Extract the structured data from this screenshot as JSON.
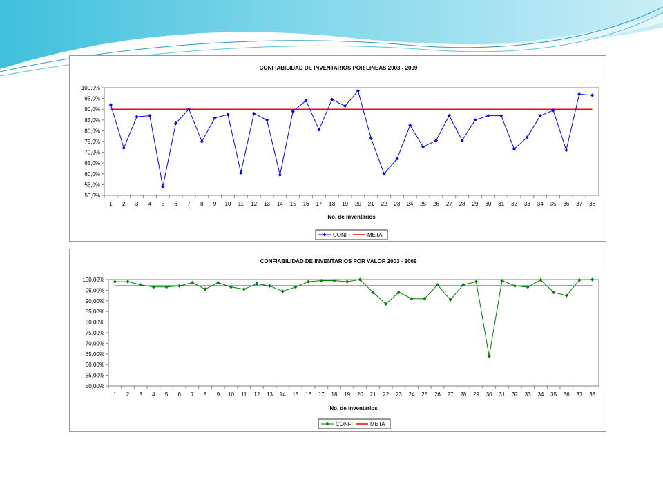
{
  "chart_data": [
    {
      "type": "line",
      "title": "CONFIABILIDAD DE INVENTARIOS POR LINEAS 2003 - 2009",
      "xlabel": "No. de inventarios",
      "ylabel": "",
      "categories": [
        "1",
        "2",
        "3",
        "4",
        "5",
        "6",
        "7",
        "8",
        "9",
        "10",
        "11",
        "12",
        "13",
        "14",
        "15",
        "16",
        "17",
        "18",
        "19",
        "20",
        "21",
        "22",
        "23",
        "24",
        "25",
        "26",
        "27",
        "28",
        "29",
        "30",
        "31",
        "32",
        "33",
        "34",
        "35",
        "36",
        "37",
        "38"
      ],
      "ylim": [
        50,
        100
      ],
      "yticks": [
        "50,0%",
        "55,0%",
        "60,0%",
        "65,0%",
        "70,0%",
        "75,0%",
        "80,0%",
        "85,0%",
        "90,0%",
        "95,0%",
        "100,0%"
      ],
      "grid": false,
      "legend": "bottom",
      "series": [
        {
          "name": "CONFI",
          "color": "#0000ff",
          "marker": "diamond",
          "values": [
            92.0,
            72.0,
            86.5,
            87.0,
            54.0,
            83.5,
            90.0,
            75.0,
            86.0,
            87.5,
            60.5,
            88.0,
            85.0,
            59.5,
            89.0,
            94.0,
            80.5,
            94.5,
            91.5,
            98.5,
            76.5,
            60.0,
            67.0,
            82.5,
            72.5,
            75.5,
            87.0,
            75.5,
            85.0,
            87.0,
            87.0,
            71.5,
            77.0,
            87.0,
            89.5,
            71.0,
            97.0,
            96.5
          ]
        },
        {
          "name": "META",
          "color": "#ff0000",
          "marker": "none",
          "values": [
            90,
            90,
            90,
            90,
            90,
            90,
            90,
            90,
            90,
            90,
            90,
            90,
            90,
            90,
            90,
            90,
            90,
            90,
            90,
            90,
            90,
            90,
            90,
            90,
            90,
            90,
            90,
            90,
            90,
            90,
            90,
            90,
            90,
            90,
            90,
            90,
            90,
            90
          ]
        }
      ]
    },
    {
      "type": "line",
      "title": "CONFIABILIDAD DE INVENTARIOS POR VALOR 2003 - 2009",
      "xlabel": "No. de inventarios",
      "ylabel": "",
      "categories": [
        "1",
        "2",
        "3",
        "4",
        "5",
        "6",
        "7",
        "8",
        "9",
        "10",
        "11",
        "12",
        "13",
        "14",
        "15",
        "16",
        "17",
        "18",
        "19",
        "20",
        "21",
        "22",
        "23",
        "24",
        "25",
        "26",
        "27",
        "28",
        "29",
        "30",
        "31",
        "32",
        "33",
        "34",
        "35",
        "36",
        "37",
        "38"
      ],
      "ylim": [
        50,
        100
      ],
      "yticks": [
        "50,00%",
        "55,00%",
        "60,00%",
        "65,00%",
        "70,00%",
        "75,00%",
        "80,00%",
        "85,00%",
        "90,00%",
        "95,00%",
        "100,00%"
      ],
      "grid": false,
      "legend": "bottom",
      "series": [
        {
          "name": "CONFI",
          "color": "#008000",
          "marker": "diamond",
          "values": [
            99.0,
            99.0,
            97.5,
            96.5,
            96.5,
            97.0,
            98.5,
            95.5,
            98.5,
            96.5,
            95.5,
            98.0,
            97.0,
            94.5,
            96.5,
            99.0,
            99.5,
            99.5,
            99.0,
            100.0,
            94.0,
            88.5,
            94.0,
            91.0,
            91.0,
            97.5,
            90.5,
            97.5,
            99.0,
            64.0,
            99.5,
            97.0,
            96.5,
            99.8,
            94.0,
            92.5,
            99.8,
            100.0
          ]
        },
        {
          "name": "META",
          "color": "#ff0000",
          "marker": "none",
          "values": [
            97,
            97,
            97,
            97,
            97,
            97,
            97,
            97,
            97,
            97,
            97,
            97,
            97,
            97,
            97,
            97,
            97,
            97,
            97,
            97,
            97,
            97,
            97,
            97,
            97,
            97,
            97,
            97,
            97,
            97,
            97,
            97,
            97,
            97,
            97,
            97,
            97,
            97
          ]
        }
      ]
    }
  ]
}
